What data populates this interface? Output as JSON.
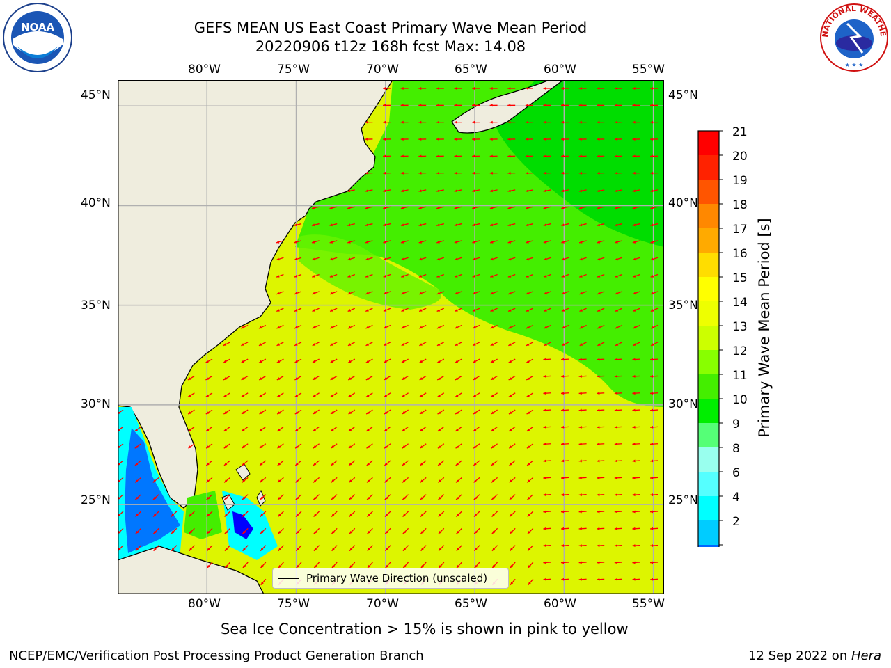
{
  "title": {
    "line1": "GEFS MEAN US East Coast Primary Wave Mean Period",
    "line2": "20220906 t12z 168h fcst   Max: 14.08"
  },
  "map": {
    "lon_ticks": [
      "80°W",
      "75°W",
      "70°W",
      "65°W",
      "60°W",
      "55°W"
    ],
    "lat_ticks": [
      "45°N",
      "40°N",
      "35°N",
      "30°N",
      "25°N"
    ],
    "lon_range": [
      -85,
      -54.4
    ],
    "lat_range": [
      20.5,
      46.3
    ],
    "grid": true,
    "land_color": "#efedde",
    "ocean_color": "#ddf500",
    "arrow_color": "#ff0000"
  },
  "colorbar": {
    "label": "Primary Wave Mean Period [s]",
    "ticks": [
      "21",
      "20",
      "19",
      "18",
      "17",
      "16",
      "15",
      "14",
      "13",
      "12",
      "11",
      "10",
      "9",
      "8",
      "6",
      "4",
      "2"
    ],
    "colors": [
      "#ff0000",
      "#ff2200",
      "#ff5500",
      "#ff8800",
      "#ffaa00",
      "#ffdd00",
      "#ffff00",
      "#eeff00",
      "#ccff00",
      "#88ff00",
      "#44ee00",
      "#00ee00",
      "#55ff77",
      "#99ffee",
      "#55ffff",
      "#00ffff",
      "#00ccff",
      "#0066ff",
      "#0000ff"
    ]
  },
  "legend": {
    "label": "Primary Wave Direction (unscaled)"
  },
  "note": "Sea Ice Concentration > 15% is shown in pink to yellow",
  "footer": {
    "left": "NCEP/EMC/Verification Post Processing Product Generation Branch",
    "date": "12 Sep 2022 on ",
    "machine": "Hera"
  },
  "logos": {
    "left": "NOAA",
    "right": "NATIONAL WEATHER SERVICE"
  }
}
